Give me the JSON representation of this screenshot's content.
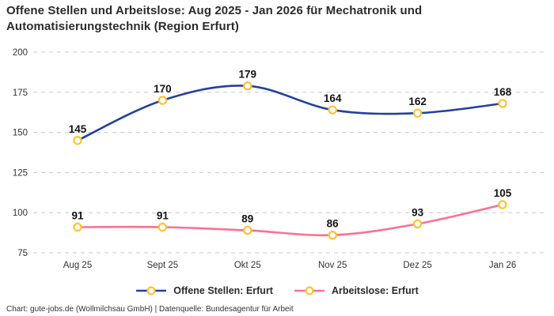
{
  "title": "Offene Stellen und Arbeitslose: Aug 2025 - Jan 2026 für Mechatronik und Automatisierungstechnik (Region Erfurt)",
  "footer": "Chart: gute-jobs.de (Wollmilchsau GmbH) | Datenquelle: Bundesagentur für Arbeit",
  "colors": {
    "grid": "#c9c9c9",
    "axis_text": "#333333",
    "value_label": "#141414",
    "marker_stroke": "#ffc233",
    "marker_fill": "#ffffff"
  },
  "chart_data": {
    "type": "line",
    "title": "Offene Stellen und Arbeitslose: Aug 2025 - Jan 2026 für Mechatronik und Automatisierungstechnik (Region Erfurt)",
    "categories": [
      "Aug 25",
      "Sept 25",
      "Okt 25",
      "Nov 25",
      "Dez 25",
      "Jan 26"
    ],
    "series": [
      {
        "name": "Offene Stellen: Erfurt",
        "color": "#24409e",
        "values": [
          145,
          170,
          179,
          164,
          162,
          168
        ]
      },
      {
        "name": "Arbeitslose: Erfurt",
        "color": "#fb7191",
        "values": [
          91,
          91,
          89,
          86,
          93,
          105
        ]
      }
    ],
    "ylim": [
      75,
      200
    ],
    "yticks": [
      75,
      100,
      125,
      150,
      175,
      200
    ],
    "grid": true,
    "grid_style": "dashed",
    "line_style": "smooth",
    "markers": "circle-gold",
    "data_labels": true,
    "legend_position": "bottom",
    "xlabel": "",
    "ylabel": ""
  }
}
